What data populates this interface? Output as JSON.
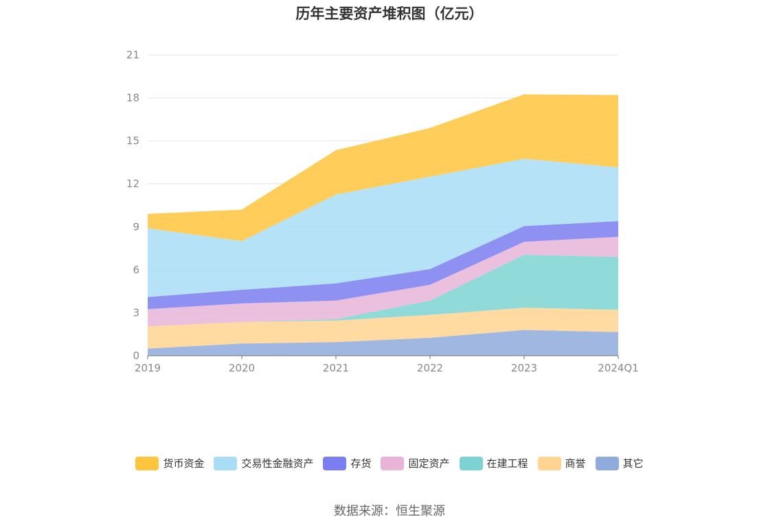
{
  "chart_data": {
    "type": "area",
    "stacked": true,
    "title": "历年主要资产堆积图（亿元）",
    "categories": [
      "2019",
      "2020",
      "2021",
      "2022",
      "2023",
      "2024Q1"
    ],
    "y_ticks": [
      "0",
      "3",
      "6",
      "9",
      "12",
      "15",
      "18",
      "21"
    ],
    "ylim": [
      0,
      21
    ],
    "grid": true,
    "legend_position": "bottom",
    "series": [
      {
        "name": "其它",
        "color": "#8faadc",
        "values": [
          0.5,
          0.85,
          0.95,
          1.25,
          1.8,
          1.65
        ]
      },
      {
        "name": "商誉",
        "color": "#ffd591",
        "values": [
          1.55,
          1.5,
          1.5,
          1.6,
          1.55,
          1.55
        ]
      },
      {
        "name": "在建工程",
        "color": "#7dd3d3",
        "values": [
          0.0,
          0.0,
          0.1,
          1.0,
          3.7,
          3.7
        ]
      },
      {
        "name": "固定资产",
        "color": "#e8b4d8",
        "values": [
          1.2,
          1.3,
          1.3,
          1.1,
          0.9,
          1.4
        ]
      },
      {
        "name": "存货",
        "color": "#7b7ef0",
        "values": [
          0.85,
          0.95,
          1.2,
          1.1,
          1.1,
          1.1
        ]
      },
      {
        "name": "交易性金融资产",
        "color": "#a8ddf5",
        "values": [
          4.8,
          3.4,
          6.2,
          6.45,
          4.7,
          3.75
        ]
      },
      {
        "name": "货币资金",
        "color": "#ffc53d",
        "values": [
          1.0,
          2.2,
          3.1,
          3.4,
          4.5,
          5.05
        ]
      }
    ],
    "legend_order": [
      "货币资金",
      "交易性金融资产",
      "存货",
      "固定资产",
      "在建工程",
      "商誉",
      "其它"
    ]
  },
  "source": "数据来源：恒生聚源"
}
